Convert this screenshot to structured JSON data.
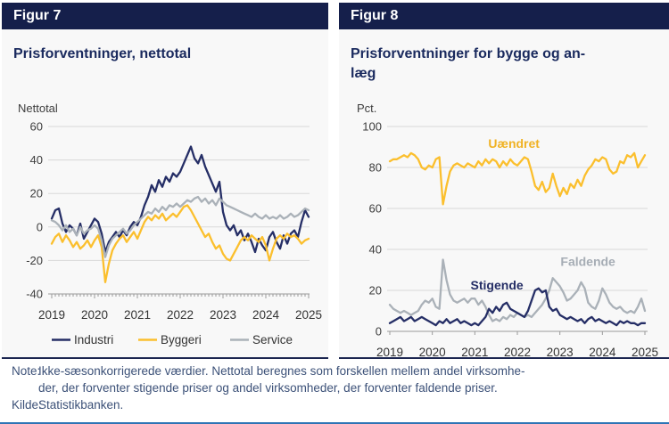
{
  "figure7": {
    "header": "Figur 7",
    "title": "Prisforventninger, nettotal",
    "y_unit": "Nettotal"
  },
  "figure8": {
    "header": "Figur 8",
    "title_line1": "Prisforventninger for bygge og an-",
    "title_line2": "læg",
    "y_unit": "Pct."
  },
  "note": {
    "label": "Note:",
    "line1": "Ikke-sæsonkorrigerede  værdier. Nettotal beregnes som forskellen mellem andel virksomhe-",
    "line2": "der, der forventer stigende priser og andel virksomheder, der forventer faldende priser."
  },
  "kilde": {
    "label": "Kilde:",
    "text": "Statistikbanken."
  },
  "colors": {
    "navy": "#252e66",
    "yellow": "#fbbf2d",
    "gray": "#aab1b8",
    "header_bg": "#151f4b",
    "grid": "#d9d9d9",
    "axis": "#9a9a9a",
    "tick_text": "#3d3d3d",
    "bottom_rule": "#2e74b5"
  },
  "chart_data": [
    {
      "type": "line",
      "title": "Prisforventninger, nettotal",
      "y_unit": "Nettotal",
      "x_years": [
        2019,
        2020,
        2021,
        2022,
        2023,
        2024,
        2025
      ],
      "x_frequency": "monthly",
      "ylim": [
        -40,
        60
      ],
      "yticks": [
        60,
        40,
        20,
        0,
        -20,
        -40
      ],
      "grid": true,
      "legend_position": "bottom",
      "series": [
        {
          "name": "Industri",
          "color": "#252e66",
          "values": [
            5,
            10,
            11,
            2,
            -3,
            1,
            -1,
            -5,
            2,
            -7,
            -3,
            1,
            5,
            3,
            -4,
            -15,
            -9,
            -6,
            -3,
            -6,
            -2,
            -5,
            0,
            3,
            1,
            6,
            13,
            18,
            25,
            21,
            28,
            24,
            30,
            27,
            32,
            30,
            33,
            38,
            43,
            48,
            41,
            38,
            43,
            36,
            31,
            26,
            21,
            27,
            9,
            1,
            -2,
            1,
            -5,
            -2,
            -8,
            -4,
            -9,
            -15,
            -7,
            -11,
            -14,
            -6,
            -3,
            -9,
            -13,
            -5,
            -10,
            -4,
            -2,
            -6,
            3,
            10,
            6
          ]
        },
        {
          "name": "Byggeri",
          "color": "#fbbf2d",
          "values": [
            -10,
            -6,
            -4,
            -9,
            -5,
            -8,
            -12,
            -9,
            -13,
            -11,
            -8,
            -12,
            -8,
            -5,
            -12,
            -33,
            -22,
            -14,
            -10,
            -7,
            -5,
            -9,
            -6,
            -3,
            -7,
            -2,
            3,
            6,
            4,
            7,
            5,
            8,
            4,
            6,
            8,
            6,
            9,
            12,
            13,
            10,
            6,
            2,
            -2,
            -6,
            -4,
            -9,
            -13,
            -11,
            -16,
            -19,
            -20,
            -16,
            -12,
            -8,
            -6,
            -8,
            -5,
            -7,
            -9,
            -6,
            -11,
            -20,
            -13,
            -7,
            -5,
            -7,
            -4,
            -6,
            -5,
            -7,
            -10,
            -8,
            -7
          ]
        },
        {
          "name": "Service",
          "color": "#aab1b8",
          "values": [
            4,
            3,
            1,
            -2,
            1,
            -3,
            -1,
            -5,
            0,
            -4,
            -2,
            -1,
            1,
            -1,
            -8,
            -18,
            -11,
            -7,
            -5,
            -3,
            -1,
            -4,
            -2,
            1,
            3,
            5,
            7,
            9,
            8,
            11,
            9,
            12,
            10,
            13,
            12,
            14,
            12,
            14,
            16,
            15,
            17,
            18,
            15,
            17,
            14,
            16,
            13,
            17,
            15,
            13,
            12,
            11,
            10,
            9,
            8,
            7,
            6,
            8,
            6,
            5,
            7,
            5,
            6,
            5,
            7,
            5,
            6,
            8,
            6,
            7,
            9,
            11,
            10
          ]
        }
      ]
    },
    {
      "type": "line",
      "title": "Prisforventninger for bygge og anlæg",
      "y_unit": "Pct.",
      "x_years": [
        2019,
        2020,
        2021,
        2022,
        2023,
        2024,
        2025
      ],
      "x_frequency": "monthly",
      "ylim": [
        0,
        100
      ],
      "yticks": [
        100,
        80,
        60,
        40,
        20,
        0
      ],
      "grid": true,
      "legend_position": "inline-annotations",
      "series": [
        {
          "name": "Uændret",
          "color": "#fbbf2d",
          "values": [
            83,
            84,
            84,
            85,
            86,
            85,
            87,
            86,
            84,
            80,
            79,
            81,
            80,
            84,
            85,
            62,
            71,
            78,
            81,
            82,
            81,
            80,
            82,
            81,
            80,
            83,
            81,
            84,
            82,
            84,
            83,
            80,
            83,
            81,
            84,
            82,
            81,
            83,
            85,
            84,
            78,
            71,
            69,
            73,
            68,
            70,
            77,
            71,
            66,
            70,
            67,
            72,
            70,
            74,
            71,
            76,
            79,
            81,
            84,
            83,
            85,
            84,
            79,
            77,
            78,
            83,
            82,
            86,
            85,
            87,
            80,
            83,
            86
          ]
        },
        {
          "name": "Faldende",
          "color": "#aab1b8",
          "values": [
            13,
            11,
            10,
            9,
            10,
            9,
            8,
            9,
            10,
            13,
            15,
            14,
            16,
            12,
            11,
            35,
            25,
            18,
            15,
            14,
            15,
            16,
            14,
            16,
            16,
            13,
            15,
            12,
            8,
            5,
            6,
            5,
            7,
            6,
            8,
            7,
            9,
            8,
            7,
            8,
            7,
            9,
            11,
            13,
            16,
            20,
            26,
            24,
            22,
            19,
            15,
            16,
            18,
            20,
            24,
            21,
            14,
            12,
            11,
            15,
            21,
            18,
            14,
            12,
            11,
            12,
            10,
            9,
            10,
            9,
            12,
            16,
            10
          ]
        },
        {
          "name": "Stigende",
          "color": "#252e66",
          "values": [
            4,
            5,
            6,
            7,
            5,
            6,
            7,
            5,
            6,
            7,
            6,
            5,
            4,
            3,
            5,
            4,
            6,
            4,
            5,
            6,
            4,
            5,
            4,
            3,
            4,
            3,
            5,
            7,
            11,
            9,
            12,
            10,
            13,
            14,
            11,
            10,
            9,
            8,
            7,
            10,
            15,
            20,
            21,
            19,
            20,
            12,
            10,
            11,
            8,
            7,
            6,
            7,
            6,
            5,
            6,
            4,
            6,
            7,
            5,
            6,
            5,
            4,
            5,
            4,
            3,
            5,
            4,
            5,
            4,
            4,
            3,
            4,
            4
          ]
        }
      ],
      "annotations": [
        {
          "text": "Uændret",
          "color": "#f0b224",
          "x_year": 2021.92,
          "y_value": 89.5
        },
        {
          "text": "Faldende",
          "color": "#a6adb5",
          "x_year": 2023.66,
          "y_value": 32.0
        },
        {
          "text": "Stigende",
          "color": "#252e66",
          "x_year": 2021.52,
          "y_value": 20.4
        }
      ]
    }
  ]
}
